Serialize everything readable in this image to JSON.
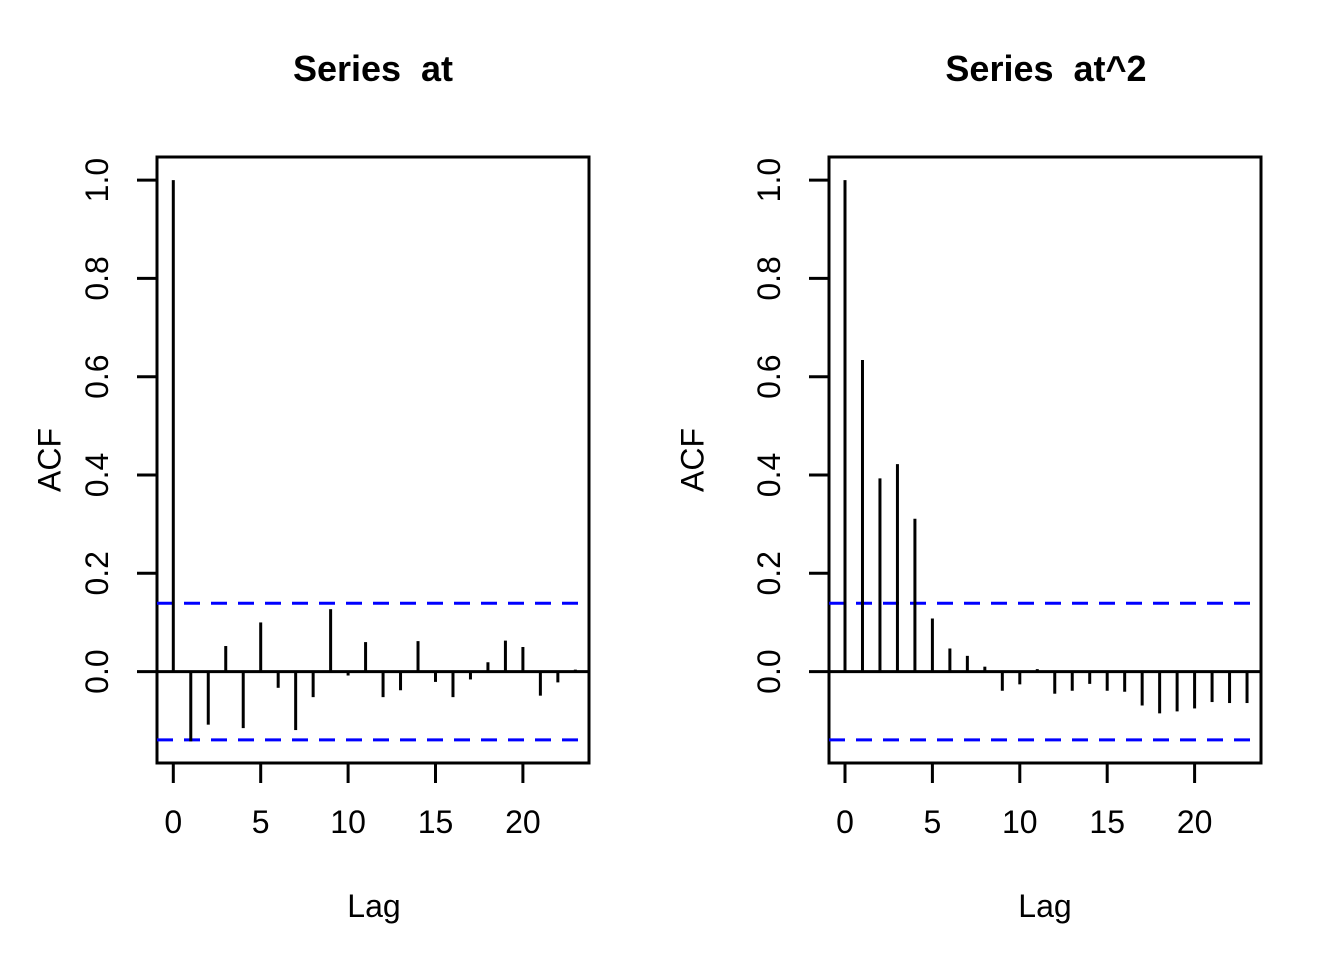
{
  "figure": {
    "background": "#ffffff",
    "plots": [
      "Series  at",
      "Series  at^2"
    ]
  },
  "chart_data": [
    {
      "type": "bar",
      "subtype": "acf-stem-plot",
      "title": "Series  at",
      "xlabel": "Lag",
      "ylabel": "ACF",
      "x": [
        0,
        1,
        2,
        3,
        4,
        5,
        6,
        7,
        8,
        9,
        10,
        11,
        12,
        13,
        14,
        15,
        16,
        17,
        18,
        19,
        20,
        21,
        22,
        23
      ],
      "values": [
        1.0,
        -0.142,
        -0.108,
        0.052,
        -0.115,
        0.1,
        -0.033,
        -0.119,
        -0.052,
        0.127,
        -0.008,
        0.06,
        -0.052,
        -0.038,
        0.062,
        -0.021,
        -0.052,
        -0.016,
        0.019,
        0.063,
        0.05,
        -0.049,
        -0.022,
        0.004
      ],
      "conf_band": 0.139,
      "conf_line_style": "dashed",
      "xlim": [
        -0.93,
        23.8
      ],
      "ylim": [
        -0.186,
        1.047
      ],
      "yticks": {
        "values": [
          0.0,
          0.2,
          0.4,
          0.6,
          0.8,
          1.0
        ],
        "labels": [
          "0.0",
          "0.2",
          "0.4",
          "0.6",
          "0.8",
          "1.0"
        ]
      },
      "xticks": {
        "values": [
          0,
          5,
          10,
          15,
          20
        ],
        "labels": [
          "0",
          "5",
          "10",
          "15",
          "20"
        ]
      },
      "grid": false,
      "legend": false,
      "colors": {
        "bar": "#000000",
        "axis": "#000000",
        "conf": "#0000ff"
      }
    },
    {
      "type": "bar",
      "subtype": "acf-stem-plot",
      "title": "Series  at^2",
      "xlabel": "Lag",
      "ylabel": "ACF",
      "x": [
        0,
        1,
        2,
        3,
        4,
        5,
        6,
        7,
        8,
        9,
        10,
        11,
        12,
        13,
        14,
        15,
        16,
        17,
        18,
        19,
        20,
        21,
        22,
        23
      ],
      "values": [
        1.0,
        0.634,
        0.393,
        0.422,
        0.311,
        0.108,
        0.047,
        0.032,
        0.01,
        -0.039,
        -0.026,
        0.005,
        -0.045,
        -0.039,
        -0.025,
        -0.039,
        -0.041,
        -0.069,
        -0.085,
        -0.081,
        -0.075,
        -0.062,
        -0.064,
        -0.064
      ],
      "conf_band": 0.139,
      "conf_line_style": "dashed",
      "xlim": [
        -0.93,
        23.8
      ],
      "ylim": [
        -0.186,
        1.047
      ],
      "yticks": {
        "values": [
          0.0,
          0.2,
          0.4,
          0.6,
          0.8,
          1.0
        ],
        "labels": [
          "0.0",
          "0.2",
          "0.4",
          "0.6",
          "0.8",
          "1.0"
        ]
      },
      "xticks": {
        "values": [
          0,
          5,
          10,
          15,
          20
        ],
        "labels": [
          "0",
          "5",
          "10",
          "15",
          "20"
        ]
      },
      "grid": false,
      "legend": false,
      "colors": {
        "bar": "#000000",
        "axis": "#000000",
        "conf": "#0000ff"
      }
    }
  ]
}
